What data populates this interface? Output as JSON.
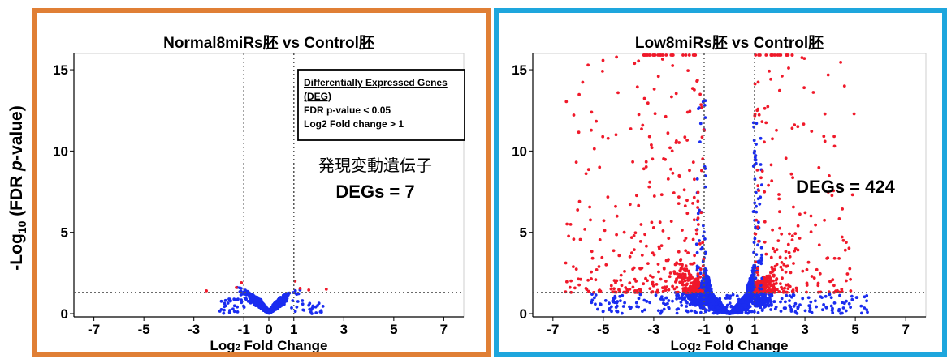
{
  "y_axis_label": {
    "prefix": "-Log",
    "sub": "10",
    "middle": " (FDR ",
    "italic": "p",
    "suffix": "-value)"
  },
  "colors": {
    "left_border": "#e07f35",
    "right_border": "#1ea6dd",
    "non_significant": "#1a2cf0",
    "significant": "#f0192a"
  },
  "legend": {
    "line1": "Differentially Expressed Genes",
    "line2": "(DEG)",
    "line3": "FDR p-value < 0.05",
    "line4": "Log2 Fold change > 1"
  },
  "chart_data": [
    {
      "type": "scatter",
      "title": "Normal8miRs胚 vs Control胚",
      "xlabel_prefix": "Log",
      "xlabel_sub": "2",
      "xlabel_suffix": " Fold Change",
      "xlim": [
        -7.8,
        7.8
      ],
      "ylim": [
        -0.2,
        16
      ],
      "xticks": [
        -7,
        -5,
        -3,
        -1,
        0,
        1,
        3,
        5,
        7
      ],
      "yticks": [
        0,
        5,
        10,
        15
      ],
      "threshold_lines": {
        "x": [
          -1,
          1
        ],
        "y": 1.3
      },
      "grid": false,
      "annotation_jp": "発現変動遺伝子",
      "degs_label": "DEGs = 7",
      "point_density": "low"
    },
    {
      "type": "scatter",
      "title": "Low8miRs胚 vs Control胚",
      "xlabel_prefix": "Log",
      "xlabel_sub": "2",
      "xlabel_suffix": " Fold Change",
      "xlim": [
        -7.8,
        7.8
      ],
      "ylim": [
        -0.2,
        16
      ],
      "xticks": [
        -7,
        -5,
        -3,
        -1,
        0,
        1,
        3,
        5,
        7
      ],
      "yticks": [
        0,
        5,
        10,
        15
      ],
      "threshold_lines": {
        "x": [
          -1,
          1
        ],
        "y": 1.3
      },
      "grid": false,
      "degs_label": "DEGs = 424",
      "point_density": "high"
    }
  ]
}
